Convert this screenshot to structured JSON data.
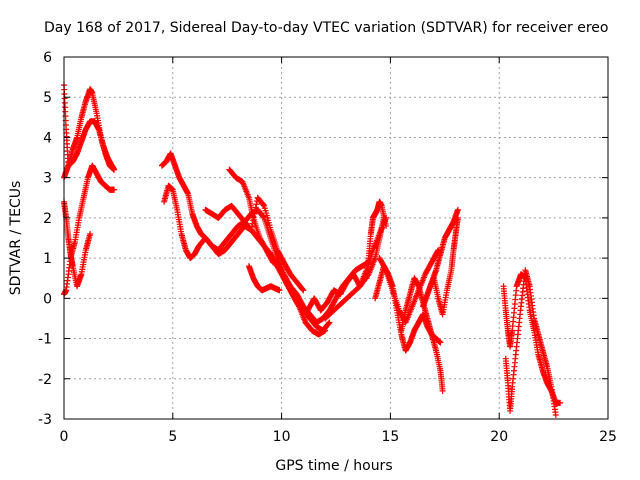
{
  "chart_data": {
    "type": "scatter",
    "title": "Day 168 of 2017, Sidereal Day-to-day VTEC variation (SDTVAR) for receiver ereo",
    "xlabel": "GPS time / hours",
    "ylabel": "SDTVAR / TECUs",
    "xlim": [
      0,
      25
    ],
    "ylim": [
      -3,
      6
    ],
    "x_ticks": [
      "0",
      "5",
      "10",
      "15",
      "20",
      "25"
    ],
    "y_ticks": [
      "-3",
      "-2",
      "-1",
      "0",
      "1",
      "2",
      "3",
      "4",
      "5",
      "6"
    ],
    "grid": true,
    "marker": "+",
    "color": "#ff0000",
    "series": [
      {
        "name": "s1",
        "x": [
          0.0,
          0.1,
          0.2,
          0.4,
          0.6,
          0.8,
          1.0,
          1.2,
          1.3,
          1.5,
          1.7,
          1.9,
          2.1,
          2.3
        ],
        "y": [
          5.3,
          4.2,
          3.3,
          3.7,
          4.0,
          4.5,
          4.9,
          5.2,
          5.1,
          4.6,
          4.0,
          3.6,
          3.3,
          3.2
        ]
      },
      {
        "name": "s2",
        "x": [
          0.0,
          0.2,
          0.4,
          0.6,
          0.8,
          1.0,
          1.2,
          1.4,
          1.6,
          1.8,
          2.0,
          2.2,
          2.3
        ],
        "y": [
          3.0,
          3.3,
          3.4,
          3.6,
          3.9,
          4.2,
          4.4,
          4.4,
          4.2,
          3.8,
          3.5,
          3.3,
          3.2
        ]
      },
      {
        "name": "s3",
        "x": [
          0.0,
          0.1,
          0.3,
          0.5,
          0.7,
          0.9,
          1.1,
          1.3,
          1.5,
          1.7,
          1.9,
          2.1,
          2.3
        ],
        "y": [
          0.1,
          0.2,
          1.0,
          1.4,
          2.0,
          2.5,
          3.0,
          3.3,
          3.1,
          2.9,
          2.8,
          2.7,
          2.7
        ]
      },
      {
        "name": "s4",
        "x": [
          0.0,
          0.1,
          0.2,
          0.3,
          0.4,
          0.6,
          0.8,
          1.0,
          1.2
        ],
        "y": [
          2.4,
          2.0,
          1.5,
          1.1,
          0.8,
          0.3,
          0.6,
          1.2,
          1.6
        ]
      },
      {
        "name": "s5",
        "x": [
          4.5,
          4.7,
          4.9,
          5.1,
          5.3,
          5.5,
          5.7,
          5.9,
          6.1,
          6.3,
          6.5,
          6.8,
          7.1,
          7.4,
          7.7,
          8.0,
          8.3,
          8.6,
          8.9,
          9.2,
          9.5,
          9.8,
          10.1,
          10.4,
          10.7,
          11.0,
          11.3,
          11.6,
          11.9,
          12.2,
          12.5,
          12.8,
          13.1,
          13.4,
          13.7,
          14.0
        ],
        "y": [
          3.3,
          3.4,
          3.6,
          3.3,
          3.0,
          2.8,
          2.6,
          2.1,
          1.8,
          1.6,
          1.5,
          1.3,
          1.2,
          1.4,
          1.6,
          1.8,
          1.9,
          2.1,
          2.2,
          2.0,
          1.5,
          1.0,
          0.6,
          0.3,
          0.1,
          -0.2,
          -0.4,
          -0.6,
          -0.5,
          -0.3,
          0.0,
          0.3,
          0.5,
          0.7,
          0.8,
          0.9
        ]
      },
      {
        "name": "s6",
        "x": [
          4.6,
          4.8,
          5.0,
          5.2,
          5.4,
          5.6,
          5.8,
          6.0,
          6.2,
          6.5,
          6.8,
          7.1,
          7.4,
          7.7,
          8.0,
          8.3,
          8.6,
          8.9,
          9.2,
          9.5,
          9.8,
          10.1,
          10.4,
          10.7,
          11.0,
          11.3,
          11.6,
          11.9,
          12.2
        ],
        "y": [
          2.4,
          2.8,
          2.7,
          2.2,
          1.6,
          1.2,
          1.0,
          1.1,
          1.3,
          1.5,
          1.3,
          1.1,
          1.2,
          1.4,
          1.6,
          1.8,
          1.7,
          1.5,
          1.3,
          1.1,
          0.8,
          0.5,
          0.2,
          -0.1,
          -0.3,
          -0.5,
          -0.7,
          -0.8,
          -0.6
        ]
      },
      {
        "name": "s7",
        "x": [
          7.6,
          7.9,
          8.2,
          8.5,
          8.7,
          9.0,
          9.3,
          9.6,
          9.9,
          10.2,
          10.5,
          10.8,
          11.1,
          11.4,
          11.7,
          12.0
        ],
        "y": [
          3.2,
          3.0,
          2.9,
          2.5,
          2.0,
          1.5,
          1.2,
          0.9,
          0.8,
          0.4,
          0.1,
          -0.2,
          -0.6,
          -0.8,
          -0.9,
          -0.8
        ]
      },
      {
        "name": "s8",
        "x": [
          6.5,
          6.8,
          7.1,
          7.4,
          7.7,
          8.0,
          8.3,
          8.6,
          8.9,
          9.2,
          9.5,
          9.8,
          10.1,
          10.4,
          10.7,
          11.0
        ],
        "y": [
          2.2,
          2.1,
          2.0,
          2.2,
          2.3,
          2.1,
          1.9,
          1.7,
          2.5,
          2.3,
          1.7,
          1.2,
          0.9,
          0.6,
          0.4,
          0.2
        ]
      },
      {
        "name": "s9",
        "x": [
          8.5,
          8.7,
          8.9,
          9.1,
          9.3,
          9.5,
          9.7,
          9.9
        ],
        "y": [
          0.8,
          0.5,
          0.3,
          0.2,
          0.25,
          0.3,
          0.25,
          0.2
        ]
      },
      {
        "name": "s10",
        "x": [
          12.0,
          12.4,
          12.8,
          13.2,
          13.6,
          14.0,
          14.3,
          14.5,
          14.7
        ],
        "y": [
          -0.5,
          -0.3,
          -0.1,
          0.1,
          0.3,
          0.6,
          1.0,
          1.5,
          2.0
        ]
      },
      {
        "name": "s11",
        "x": [
          11.2,
          11.5,
          11.8,
          12.1,
          12.4,
          12.7,
          13.0,
          13.3,
          13.6,
          13.9,
          14.2,
          14.5,
          14.8
        ],
        "y": [
          -0.3,
          0.0,
          -0.3,
          -0.1,
          0.2,
          0.1,
          0.4,
          0.6,
          0.3,
          0.7,
          1.2,
          1.6,
          2.0
        ]
      },
      {
        "name": "s12",
        "x": [
          13.9,
          14.0,
          14.1,
          14.2,
          14.3,
          14.4,
          14.5,
          14.6,
          14.8
        ],
        "y": [
          0.5,
          1.0,
          1.6,
          2.0,
          2.1,
          2.2,
          2.4,
          2.3,
          1.8
        ]
      },
      {
        "name": "s13",
        "x": [
          14.3,
          14.5,
          14.7,
          14.9,
          15.1,
          15.3,
          15.5,
          15.7,
          15.9,
          16.1,
          16.3,
          16.5,
          16.7,
          16.9,
          17.1,
          17.3
        ],
        "y": [
          0.0,
          0.4,
          0.8,
          0.6,
          0.3,
          -0.3,
          -0.9,
          -1.3,
          -1.1,
          -0.8,
          -0.6,
          -0.4,
          -0.7,
          -0.9,
          -1.0,
          -1.1
        ]
      },
      {
        "name": "s14",
        "x": [
          14.5,
          14.8,
          15.1,
          15.4,
          15.7,
          16.0,
          16.3,
          16.6,
          16.9,
          17.2
        ],
        "y": [
          1.0,
          0.7,
          0.2,
          -0.3,
          -0.6,
          -0.2,
          0.2,
          0.6,
          0.9,
          1.2
        ]
      },
      {
        "name": "s15",
        "x": [
          15.5,
          15.7,
          15.9,
          16.1,
          16.3,
          16.5,
          16.7,
          16.9,
          17.1,
          17.3,
          17.4
        ],
        "y": [
          -0.8,
          -0.3,
          0.1,
          0.5,
          0.3,
          -0.1,
          -0.5,
          -0.9,
          -1.3,
          -1.8,
          -2.3
        ]
      },
      {
        "name": "s16",
        "x": [
          16.5,
          16.7,
          16.9,
          17.1,
          17.3,
          17.5,
          17.7,
          17.9,
          18.1
        ],
        "y": [
          -0.2,
          0.1,
          0.4,
          0.7,
          1.1,
          1.5,
          1.7,
          1.9,
          2.2
        ]
      },
      {
        "name": "s17",
        "x": [
          17.0,
          17.2,
          17.4,
          17.6,
          17.8,
          17.9,
          18.0,
          18.1
        ],
        "y": [
          0.5,
          0.0,
          -0.4,
          0.2,
          0.7,
          1.2,
          1.6,
          2.0
        ]
      },
      {
        "name": "s18",
        "x": [
          20.2,
          20.3,
          20.4,
          20.5,
          20.6,
          20.8,
          21.0,
          21.2,
          21.4,
          21.6,
          21.8,
          22.0,
          22.2,
          22.4,
          22.6,
          22.8
        ],
        "y": [
          0.3,
          -0.3,
          -0.8,
          -1.2,
          -0.8,
          0.3,
          0.6,
          0.5,
          -0.3,
          -0.8,
          -1.4,
          -1.8,
          -2.1,
          -2.3,
          -2.6,
          -2.6
        ]
      },
      {
        "name": "s19",
        "x": [
          20.3,
          20.4,
          20.5,
          20.6,
          20.8,
          21.0,
          21.2,
          21.4,
          21.6,
          21.8,
          22.0,
          22.2,
          22.4,
          22.6
        ],
        "y": [
          -1.5,
          -2.1,
          -2.8,
          -2.2,
          -1.2,
          -0.2,
          0.7,
          0.3,
          -0.5,
          -0.9,
          -1.3,
          -1.7,
          -2.2,
          -2.9
        ]
      }
    ]
  }
}
